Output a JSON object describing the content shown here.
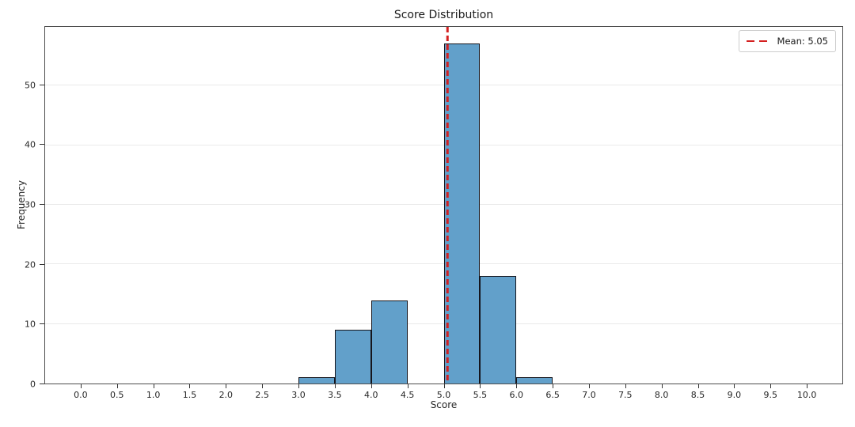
{
  "chart_data": {
    "type": "bar",
    "subtype": "histogram",
    "title": "Score Distribution",
    "xlabel": "Score",
    "ylabel": "Frequency",
    "bar_color": "#62a0ca",
    "bar_edge_color": "#15151c",
    "grid": "horizontal-only",
    "grid_color": "#eaeaea",
    "xlim": [
      -0.5,
      10.5
    ],
    "ylim": [
      0,
      59.85
    ],
    "x_ticks": [
      0.0,
      0.5,
      1.0,
      1.5,
      2.0,
      2.5,
      3.0,
      3.5,
      4.0,
      4.5,
      5.0,
      5.5,
      6.0,
      6.5,
      7.0,
      7.5,
      8.0,
      8.5,
      9.0,
      9.5,
      10.0
    ],
    "x_tick_decimals": 1,
    "y_ticks": [
      0,
      10,
      20,
      30,
      40,
      50
    ],
    "bins": {
      "width": 0.5,
      "edges": [
        3.0,
        3.5,
        4.0,
        4.5,
        5.0,
        5.5,
        6.0,
        6.5
      ],
      "counts": [
        1,
        9,
        14,
        0,
        57,
        18,
        1
      ]
    },
    "mean_line": {
      "value": 5.05,
      "color": "#d42020",
      "style": "dashed"
    },
    "legend": {
      "position": "upper-right",
      "entries": [
        {
          "label": "Mean: 5.05",
          "color": "#d42020",
          "line_style": "dashed"
        }
      ]
    }
  }
}
